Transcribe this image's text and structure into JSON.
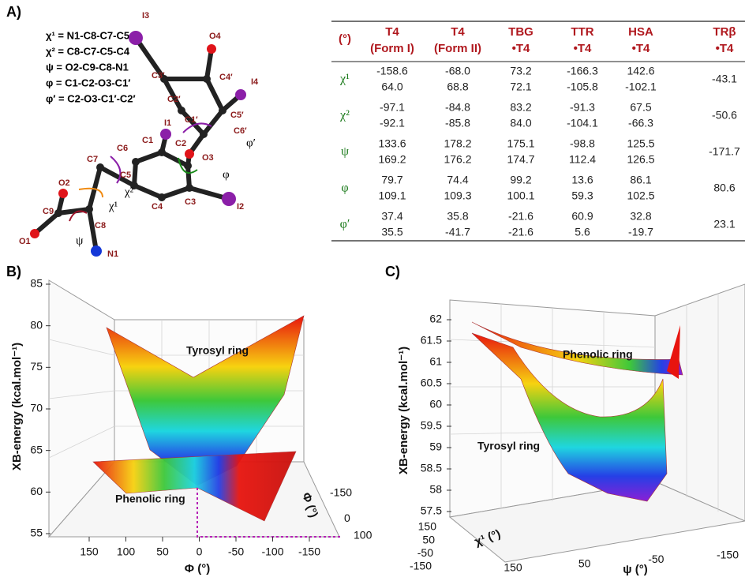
{
  "panel_a": {
    "label": "A)",
    "definitions": [
      "χ¹ = N1-C8-C7-C5",
      "χ² = C8-C7-C5-C4",
      "ψ = O2-C9-C8-N1",
      "φ = C1-C2-O3-C1′",
      "φ′ = C2-O3-C1′-C2′"
    ],
    "molecule_labels": [
      "I3",
      "O4",
      "C3′",
      "C4′",
      "I4",
      "C2′",
      "C5′",
      "C1′",
      "C6′",
      "φ′",
      "I1",
      "C6",
      "C1",
      "C2",
      "O3",
      "C5",
      "φ",
      "C7",
      "χ²",
      "O2",
      "C3",
      "C4",
      "I2",
      "χ¹",
      "C9",
      "C8",
      "O1",
      "ψ",
      "N1"
    ],
    "table": {
      "header": [
        [
          "(°)"
        ],
        [
          "T4",
          "(Form I)"
        ],
        [
          "T4",
          "(Form II)"
        ],
        [
          "TBG",
          "•T4"
        ],
        [
          "TTR",
          "•T4"
        ],
        [
          "HSA",
          "•T4"
        ],
        [
          "TRβ",
          "•T4"
        ]
      ],
      "rows": [
        {
          "label": "χ¹",
          "cells": [
            [
              "-158.6",
              "64.0"
            ],
            [
              "-68.0",
              "68.8"
            ],
            [
              "73.2",
              "72.1"
            ],
            [
              "-166.3",
              "-105.8"
            ],
            [
              "142.6",
              "-102.1"
            ],
            [
              "-43.1"
            ]
          ]
        },
        {
          "label": "χ²",
          "cells": [
            [
              "-97.1",
              "-92.1"
            ],
            [
              "-84.8",
              "-85.8"
            ],
            [
              "83.2",
              "84.0"
            ],
            [
              "-91.3",
              "-104.1"
            ],
            [
              "67.5",
              "-66.3"
            ],
            [
              "-50.6"
            ]
          ]
        },
        {
          "label": "ψ",
          "cells": [
            [
              "133.6",
              "169.2"
            ],
            [
              "178.2",
              "176.2"
            ],
            [
              "175.1",
              "174.7"
            ],
            [
              "-98.8",
              "112.4"
            ],
            [
              "125.5",
              "126.5"
            ],
            [
              "-171.7"
            ]
          ]
        },
        {
          "label": "φ",
          "cells": [
            [
              "79.7",
              "109.1"
            ],
            [
              "74.4",
              "109.3"
            ],
            [
              "99.2",
              "100.1"
            ],
            [
              "13.6",
              "59.3"
            ],
            [
              "86.1",
              "102.5"
            ],
            [
              "80.6"
            ]
          ]
        },
        {
          "label": "φ′",
          "cells": [
            [
              "37.4",
              "35.5"
            ],
            [
              "35.8",
              "-41.7"
            ],
            [
              "-21.6",
              "-21.6"
            ],
            [
              "60.9",
              "5.6"
            ],
            [
              "32.8",
              "-19.7"
            ],
            [
              "23.1"
            ]
          ]
        }
      ]
    }
  },
  "panel_b": {
    "label": "B)",
    "y_label": "XB-energy (kcal.mol⁻¹)",
    "y_ticks": [
      85,
      80,
      75,
      70,
      65,
      60,
      55
    ],
    "x_label": "Φ (°)",
    "x_ticks": [
      150,
      100,
      50,
      0,
      -50,
      -100,
      -150
    ],
    "z_label": "Φ (°)",
    "z_ticks": [
      -150,
      0,
      100
    ],
    "annotations": [
      "Tyrosyl ring",
      "Phenolic ring"
    ]
  },
  "panel_c": {
    "label": "C)",
    "y_label": "XB-energy (kcal.mol⁻¹)",
    "y_ticks": [
      62,
      61.5,
      61,
      60.5,
      60,
      59.5,
      59,
      58.5,
      58,
      57.5
    ],
    "x_label": "ψ (°)",
    "x_ticks": [
      150,
      50,
      -50,
      -150
    ],
    "z_label": "χ¹ (°)",
    "z_ticks": [
      150,
      50,
      -50,
      -150
    ],
    "annotations": [
      "Phenolic ring",
      "Tyrosyl ring"
    ]
  }
}
